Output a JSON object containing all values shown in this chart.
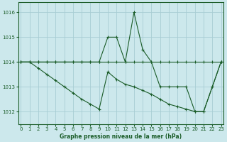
{
  "title": "Graphe pression niveau de la mer (hPa)",
  "background_color": "#cce8ec",
  "grid_color": "#a8cdd4",
  "line_color": "#1a5c28",
  "x_ticks": [
    0,
    1,
    2,
    3,
    4,
    5,
    6,
    7,
    8,
    9,
    10,
    11,
    12,
    13,
    14,
    15,
    16,
    17,
    18,
    19,
    20,
    21,
    22,
    23
  ],
  "ylim": [
    1011.5,
    1016.4
  ],
  "yticks": [
    1012,
    1013,
    1014,
    1015,
    1016
  ],
  "series": [
    [
      1014.0,
      1014.0,
      1014.0,
      1014.0,
      1014.0,
      1014.0,
      1014.0,
      1014.0,
      1014.0,
      1014.0,
      1014.0,
      1014.0,
      1014.0,
      1014.0,
      1014.0,
      1014.0,
      1014.0,
      1014.0,
      1014.0,
      1014.0,
      1014.0,
      1014.0,
      1014.0,
      1014.0
    ],
    [
      1014.0,
      1014.0,
      1014.0,
      1014.0,
      1014.0,
      1014.0,
      1014.0,
      1014.0,
      1014.0,
      1014.0,
      1015.0,
      1015.0,
      1014.0,
      1016.0,
      1014.5,
      1014.0,
      1013.0,
      1013.0,
      1013.0,
      1013.0,
      1012.0,
      1012.0,
      1013.0,
      1014.0
    ],
    [
      1014.0,
      1014.0,
      1013.75,
      1013.5,
      1013.25,
      1013.0,
      1012.75,
      1012.5,
      1012.3,
      1012.1,
      1013.6,
      1013.3,
      1013.1,
      1013.0,
      1012.85,
      1012.7,
      1012.5,
      1012.3,
      1012.2,
      1012.1,
      1012.0,
      1012.0,
      1013.0,
      1014.0
    ]
  ]
}
